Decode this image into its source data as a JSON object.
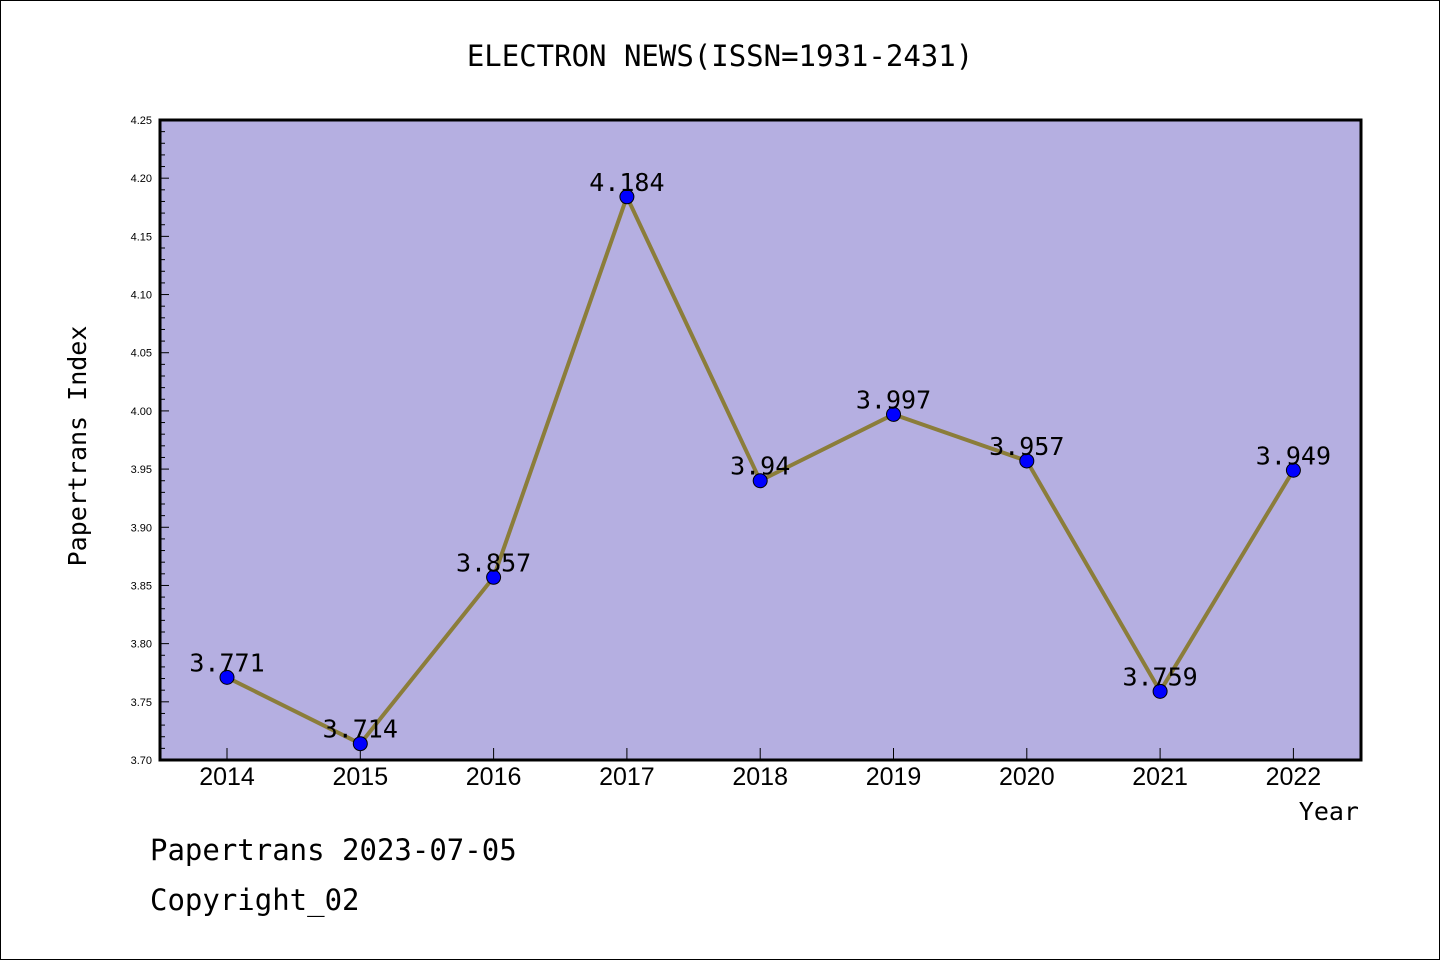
{
  "chart_data": {
    "type": "line",
    "title": "ELECTRON NEWS(ISSN=1931-2431)",
    "xlabel": "Year",
    "ylabel": "Papertrans Index",
    "categories": [
      "2014",
      "2015",
      "2016",
      "2017",
      "2018",
      "2019",
      "2020",
      "2021",
      "2022"
    ],
    "values": [
      3.771,
      3.714,
      3.857,
      4.184,
      3.94,
      3.997,
      3.957,
      3.759,
      3.949
    ],
    "value_labels": [
      "3.771",
      "3.714",
      "3.857",
      "4.184",
      "3.94",
      "3.997",
      "3.957",
      "3.759",
      "3.949"
    ],
    "ylim": [
      3.7,
      4.25
    ],
    "yticks": [
      "3.70",
      "3.75",
      "3.80",
      "3.85",
      "3.90",
      "3.95",
      "4.00",
      "4.05",
      "4.10",
      "4.15",
      "4.20",
      "4.25"
    ],
    "grid": false,
    "colors": {
      "plot_background": "#b5afe1",
      "line": "#8b7d3a",
      "marker": "#0000ff"
    }
  },
  "footer": {
    "line1": "Papertrans 2023-07-05",
    "line2": "Copyright_02"
  }
}
